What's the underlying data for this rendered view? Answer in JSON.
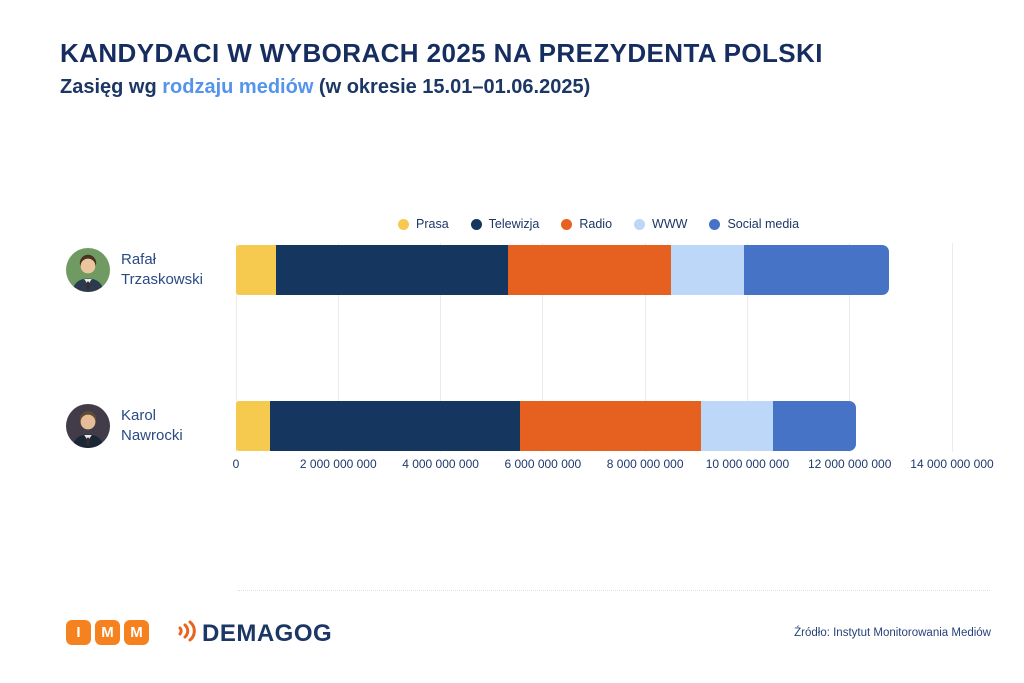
{
  "header": {
    "title": "KANDYDACI W WYBORACH 2025 NA PREZYDENTA POLSKI",
    "subtitle_prefix": "Zasięg wg ",
    "subtitle_accent": "rodzaju mediów",
    "subtitle_suffix": " (w okresie 15.01–01.06.2025)"
  },
  "chart_data": {
    "type": "bar",
    "orientation": "horizontal",
    "stacked": true,
    "grid": "vertical",
    "legend_position": "top",
    "categories": [
      "Rafał Trzaskowski",
      "Karol Nawrocki"
    ],
    "category_lines": [
      [
        "Rafał",
        "Trzaskowski"
      ],
      [
        "Karol",
        "Nawrocki"
      ]
    ],
    "series": [
      {
        "name": "Prasa",
        "color": "#F6C94F",
        "values": [
          780000000,
          660000000
        ]
      },
      {
        "name": "Telewizja",
        "color": "#14365F",
        "values": [
          4540000000,
          4890000000
        ]
      },
      {
        "name": "Radio",
        "color": "#E6601F",
        "values": [
          3190000000,
          3540000000
        ]
      },
      {
        "name": "WWW",
        "color": "#BDD7F8",
        "values": [
          1430000000,
          1410000000
        ]
      },
      {
        "name": "Social media",
        "color": "#4673C5",
        "values": [
          2820000000,
          1620000000
        ]
      }
    ],
    "x_axis": {
      "min": 0,
      "max": 14000000000,
      "tick_interval": 2000000000,
      "tick_labels": [
        "0",
        "2 000 000 000",
        "4 000 000 000",
        "6 000 000 000",
        "8 000 000 000",
        "10 000 000 000",
        "12 000 000 000",
        "14 000 000 000"
      ]
    }
  },
  "avatars": [
    {
      "bg": "#6F9B63",
      "skin": "#EAC59D",
      "hair": "#473223",
      "suit": "#2B3A4D"
    },
    {
      "bg": "#413C48",
      "skin": "#E6BD96",
      "hair": "#5E4A38",
      "suit": "#1C2735"
    }
  ],
  "footer": {
    "imm_letters": [
      "I",
      "M",
      "M"
    ],
    "demagog_label": "DEMAGOG",
    "source": "Źródło: Instytut Monitorowania Mediów"
  },
  "colors": {
    "title": "#152D5F",
    "subtitle_accent": "#5494EC",
    "imm_orange": "#F5821E",
    "demagog_navy": "#1B3765",
    "gridline": "#EAEAF2"
  }
}
